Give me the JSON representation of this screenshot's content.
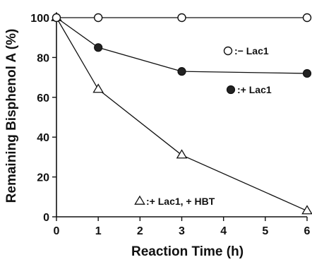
{
  "chart_data": {
    "type": "line",
    "xlabel": "Reaction Time (h)",
    "ylabel": "Remaining Bisphenol A (%)",
    "xlim": [
      0,
      6
    ],
    "ylim": [
      0,
      100
    ],
    "xticks": [
      0,
      1,
      2,
      3,
      4,
      5,
      6
    ],
    "yticks": [
      0,
      20,
      40,
      60,
      80,
      100
    ],
    "grid": false,
    "series": [
      {
        "name": ":− Lac1",
        "marker": "open-circle",
        "x": [
          0,
          1,
          3,
          6
        ],
        "y": [
          100,
          100,
          100,
          100
        ]
      },
      {
        "name": ":+ Lac1",
        "marker": "filled-circle",
        "x": [
          0,
          1,
          3,
          6
        ],
        "y": [
          100,
          85,
          73,
          72
        ]
      },
      {
        "name": ":+ Lac1, + HBT",
        "marker": "open-triangle",
        "x": [
          0,
          1,
          3,
          6
        ],
        "y": [
          100,
          64,
          31,
          3
        ]
      }
    ]
  }
}
